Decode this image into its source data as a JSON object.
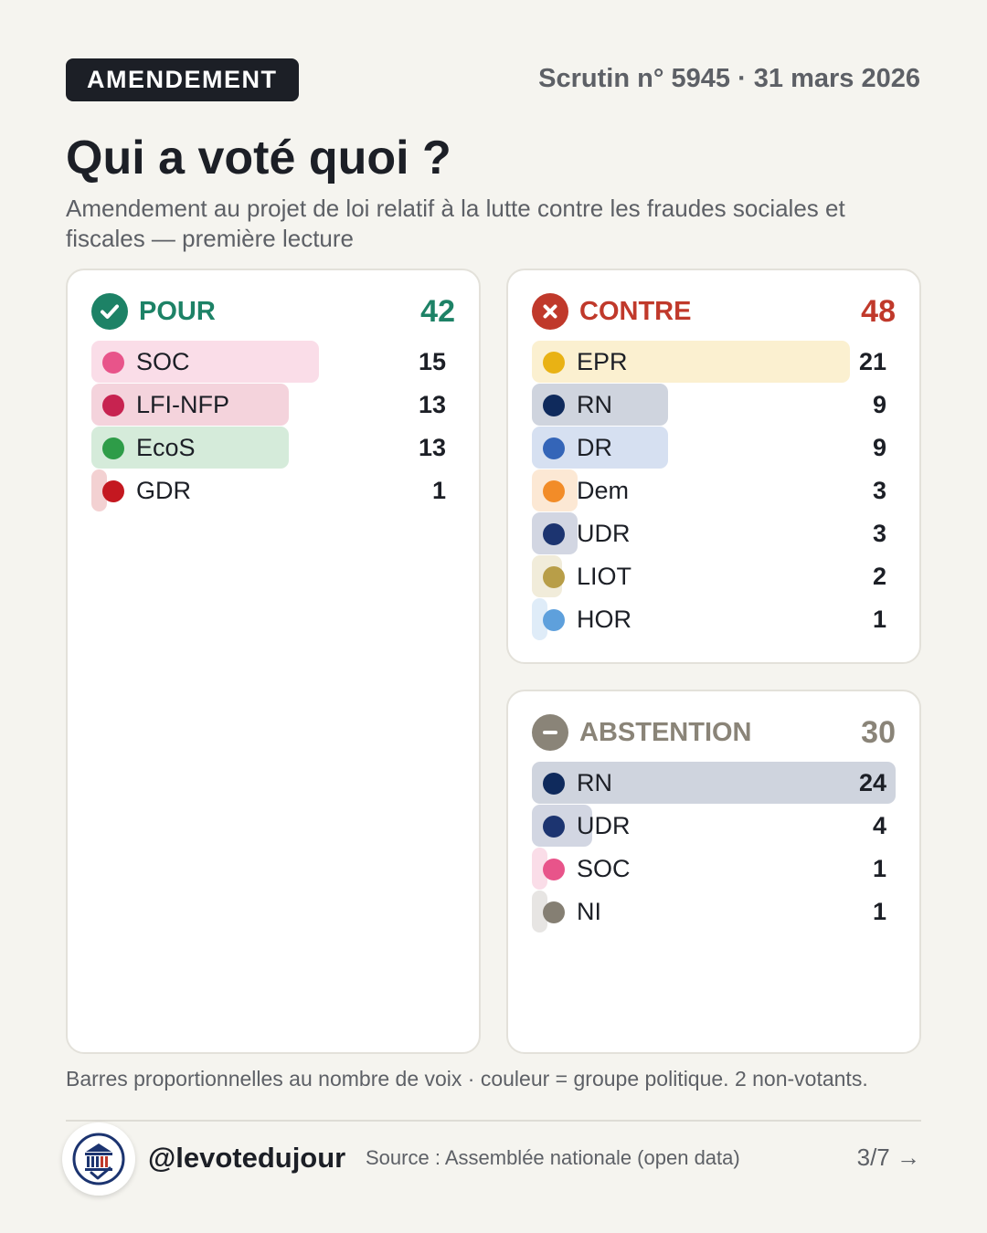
{
  "header": {
    "badge": "AMENDEMENT",
    "scrutin": "Scrutin n° 5945 · 31 mars 2026",
    "title": "Qui a voté quoi ?",
    "subtitle": "Amendement au projet de loi relatif à la lutte contre les fraudes sociales et fiscales — première lecture"
  },
  "chart_data": [
    {
      "type": "bar",
      "title": "POUR",
      "total": "42",
      "icon": "check-icon",
      "accent": "#1d8266",
      "xlim": [
        0,
        24
      ],
      "categories": [
        "SOC",
        "LFI-NFP",
        "EcoS",
        "GDR"
      ],
      "values": [
        15,
        13,
        13,
        1
      ],
      "colors": [
        "#e8548a",
        "#c72350",
        "#2e9c48",
        "#c41820"
      ]
    },
    {
      "type": "bar",
      "title": "CONTRE",
      "total": "48",
      "icon": "cross-icon",
      "accent": "#c0392b",
      "xlim": [
        0,
        24
      ],
      "categories": [
        "EPR",
        "RN",
        "DR",
        "Dem",
        "UDR",
        "LIOT",
        "HOR"
      ],
      "values": [
        21,
        9,
        9,
        3,
        3,
        2,
        1
      ],
      "colors": [
        "#e9b214",
        "#0f2a5c",
        "#3465b8",
        "#f28c28",
        "#1c3470",
        "#b89e48",
        "#5ea0dc"
      ]
    },
    {
      "type": "bar",
      "title": "ABSTENTION",
      "total": "30",
      "icon": "minus-icon",
      "accent": "#8a8478",
      "xlim": [
        0,
        24
      ],
      "categories": [
        "RN",
        "UDR",
        "SOC",
        "NI"
      ],
      "values": [
        24,
        4,
        1,
        1
      ],
      "colors": [
        "#0f2a5c",
        "#1c3470",
        "#e8548a",
        "#857f73"
      ]
    }
  ],
  "footer": {
    "note": "Barres proportionnelles au nombre de voix · couleur = groupe politique. 2 non-votants.",
    "handle": "@levotedujour",
    "source": "Source : Assemblée nationale (open data)",
    "page": "3/7 →"
  }
}
